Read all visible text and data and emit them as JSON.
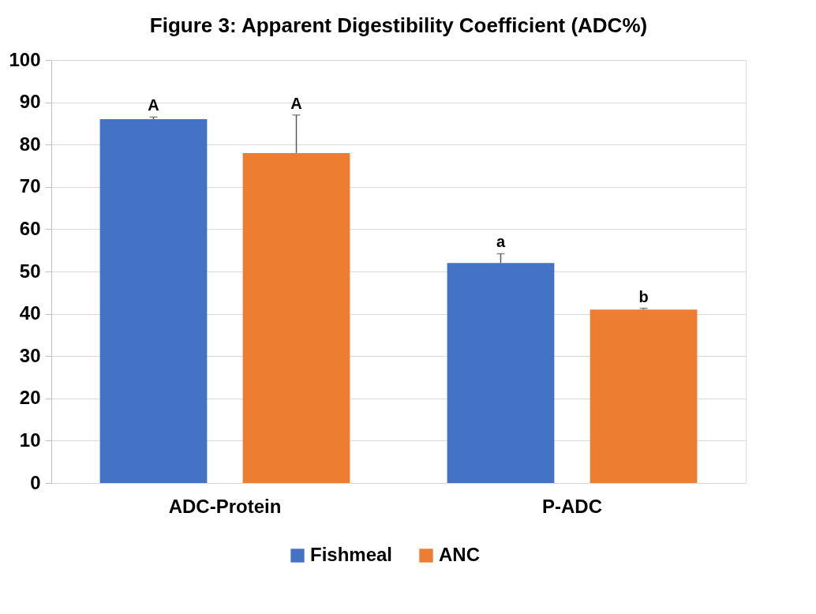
{
  "chart_data": {
    "type": "bar",
    "title": "Figure 3: Apparent Digestibility Coefficient (ADC%)",
    "categories": [
      "ADC-Protein",
      "P-ADC"
    ],
    "series": [
      {
        "name": "Fishmeal",
        "color": "#4472c4",
        "values": [
          86,
          52
        ],
        "errors": [
          0.5,
          2.2
        ]
      },
      {
        "name": "ANC",
        "color": "#ed7d31",
        "values": [
          78,
          41
        ],
        "errors": [
          9,
          0.3
        ]
      }
    ],
    "ylim": [
      0,
      100
    ],
    "yticks": [
      0,
      10,
      20,
      30,
      40,
      50,
      60,
      70,
      80,
      90,
      100
    ],
    "grid": "y",
    "legend": "bottom",
    "annotations": [
      "A",
      "A",
      "a",
      "b"
    ]
  }
}
